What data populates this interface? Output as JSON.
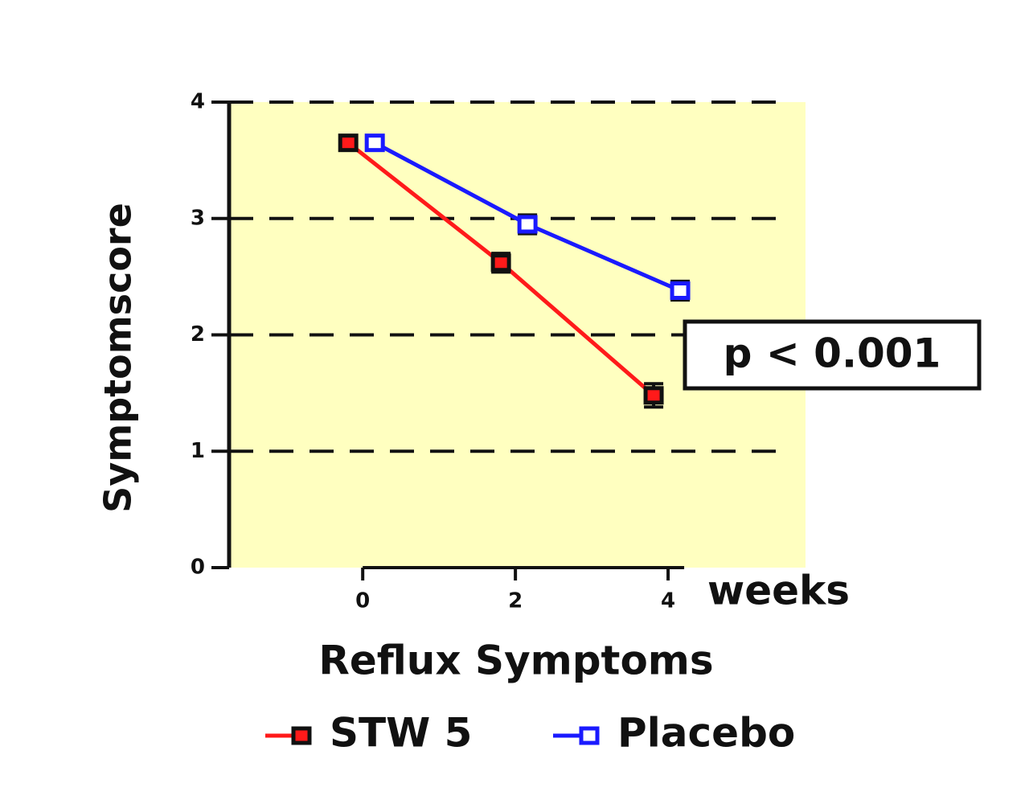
{
  "chart_data": {
    "type": "line",
    "title": "Reflux Symptoms",
    "y_label": "Symptomscore",
    "x_label": "weeks",
    "annotation": "p < 0.001",
    "x": [
      0,
      2,
      4
    ],
    "series": [
      {
        "name": "STW 5",
        "color": "#ff1a1a",
        "marker": "filled",
        "values": [
          3.65,
          2.62,
          1.48
        ],
        "errors": [
          0.05,
          0.08,
          0.1
        ]
      },
      {
        "name": "Placebo",
        "color": "#1a1aff",
        "marker": "open",
        "values": [
          3.65,
          2.95,
          2.38
        ],
        "errors": [
          0.03,
          0.08,
          0.08
        ]
      }
    ],
    "xlim": [
      -1.75,
      5.8
    ],
    "ylim": [
      0,
      4
    ],
    "xticks": [
      0,
      2,
      4
    ],
    "yticks": [
      0,
      1,
      2,
      3,
      4
    ],
    "grid": true,
    "background": "#ffffc0"
  }
}
